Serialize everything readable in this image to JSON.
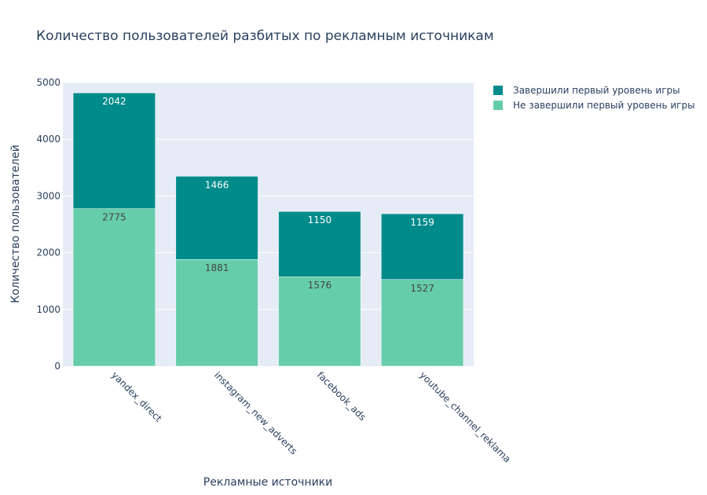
{
  "chart_data": {
    "type": "bar",
    "barmode": "stack",
    "title": "Количество пользователей  разбитых по рекламным источникам",
    "xlabel": "Рекламные источники",
    "ylabel": "Количество пользователей",
    "categories": [
      "yandex_direct",
      "instagram_new_adverts",
      "facebook_ads",
      "youtube_channel_reklama"
    ],
    "series": [
      {
        "name": "Не завершили первый уровень игры",
        "values": [
          2775,
          1881,
          1576,
          1527
        ],
        "color": "#66cdaa",
        "label_color": "#444444"
      },
      {
        "name": "Завершили первый уровень игры",
        "values": [
          2042,
          1466,
          1150,
          1159
        ],
        "color": "#008b8b",
        "label_color": "#ffffff"
      }
    ],
    "legend_order": [
      1,
      0
    ],
    "ylim": [
      0,
      5000
    ],
    "yticks": [
      0,
      1000,
      2000,
      3000,
      4000,
      5000
    ],
    "grid": true,
    "legend_position": "top-right",
    "plot_bg": "#e5ecf6"
  }
}
